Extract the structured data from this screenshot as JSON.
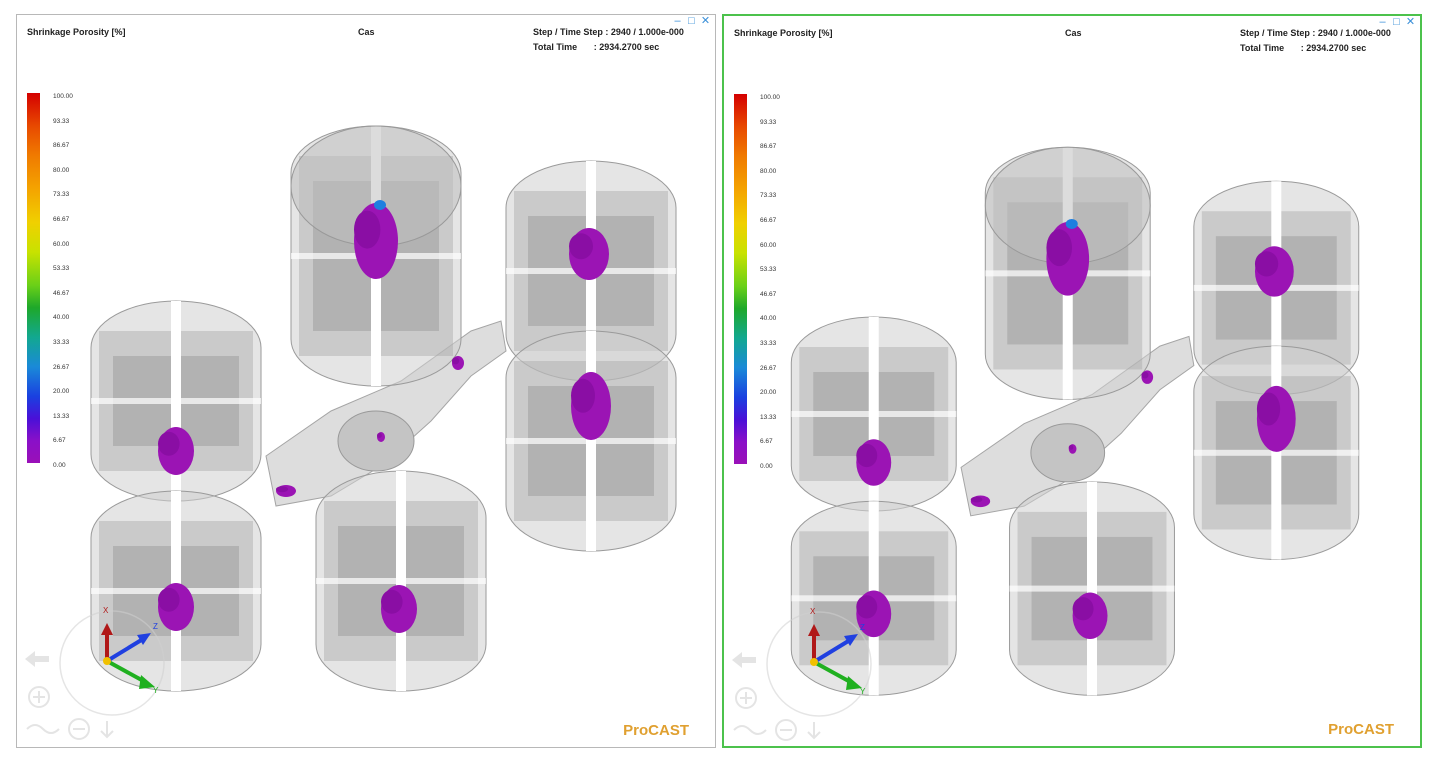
{
  "viewports": [
    {
      "id": "left",
      "title": "Shrinkage  Porosity  [%]",
      "case": "Cas",
      "step_label": "Step  /  Time  Step :",
      "step_value": "2940  /  1.000e-000",
      "total_label": "Total    Time",
      "total_value": ":  2934.2700  sec",
      "brand": "ProCAST",
      "win_controls": [
        "–",
        "□",
        "✕"
      ],
      "axes": {
        "x": "X",
        "y": "Y",
        "z": "Z"
      },
      "legend": [
        "100.00",
        "93.33",
        "86.67",
        "80.00",
        "73.33",
        "66.67",
        "60.00",
        "53.33",
        "46.67",
        "40.00",
        "33.33",
        "26.67",
        "20.00",
        "13.33",
        "6.67",
        "0.00"
      ]
    },
    {
      "id": "right",
      "title": "Shrinkage  Porosity  [%]",
      "case": "Cas",
      "step_label": "Step  /  Time  Step :",
      "step_value": "2940  /  1.000e-000",
      "total_label": "Total    Time",
      "total_value": ":  2934.2700  sec",
      "brand": "ProCAST",
      "win_controls": [
        "–",
        "□",
        "✕"
      ],
      "axes": {
        "x": "X",
        "y": "Y",
        "z": "Z"
      },
      "legend": [
        "100.00",
        "93.33",
        "86.67",
        "80.00",
        "73.33",
        "66.67",
        "60.00",
        "53.33",
        "46.67",
        "40.00",
        "33.33",
        "26.67",
        "20.00",
        "13.33",
        "6.67",
        "0.00"
      ]
    }
  ],
  "colors": {
    "active_border": "#4cc24c",
    "porosity": "#9b14b4",
    "casting": "#c8c8c8",
    "brand": "#e0a030"
  },
  "icons": [
    "minimize-icon",
    "maximize-icon",
    "close-icon",
    "rotate-icon",
    "zoom-in-icon",
    "zoom-out-icon",
    "pan-icon",
    "axis-triad-icon"
  ]
}
